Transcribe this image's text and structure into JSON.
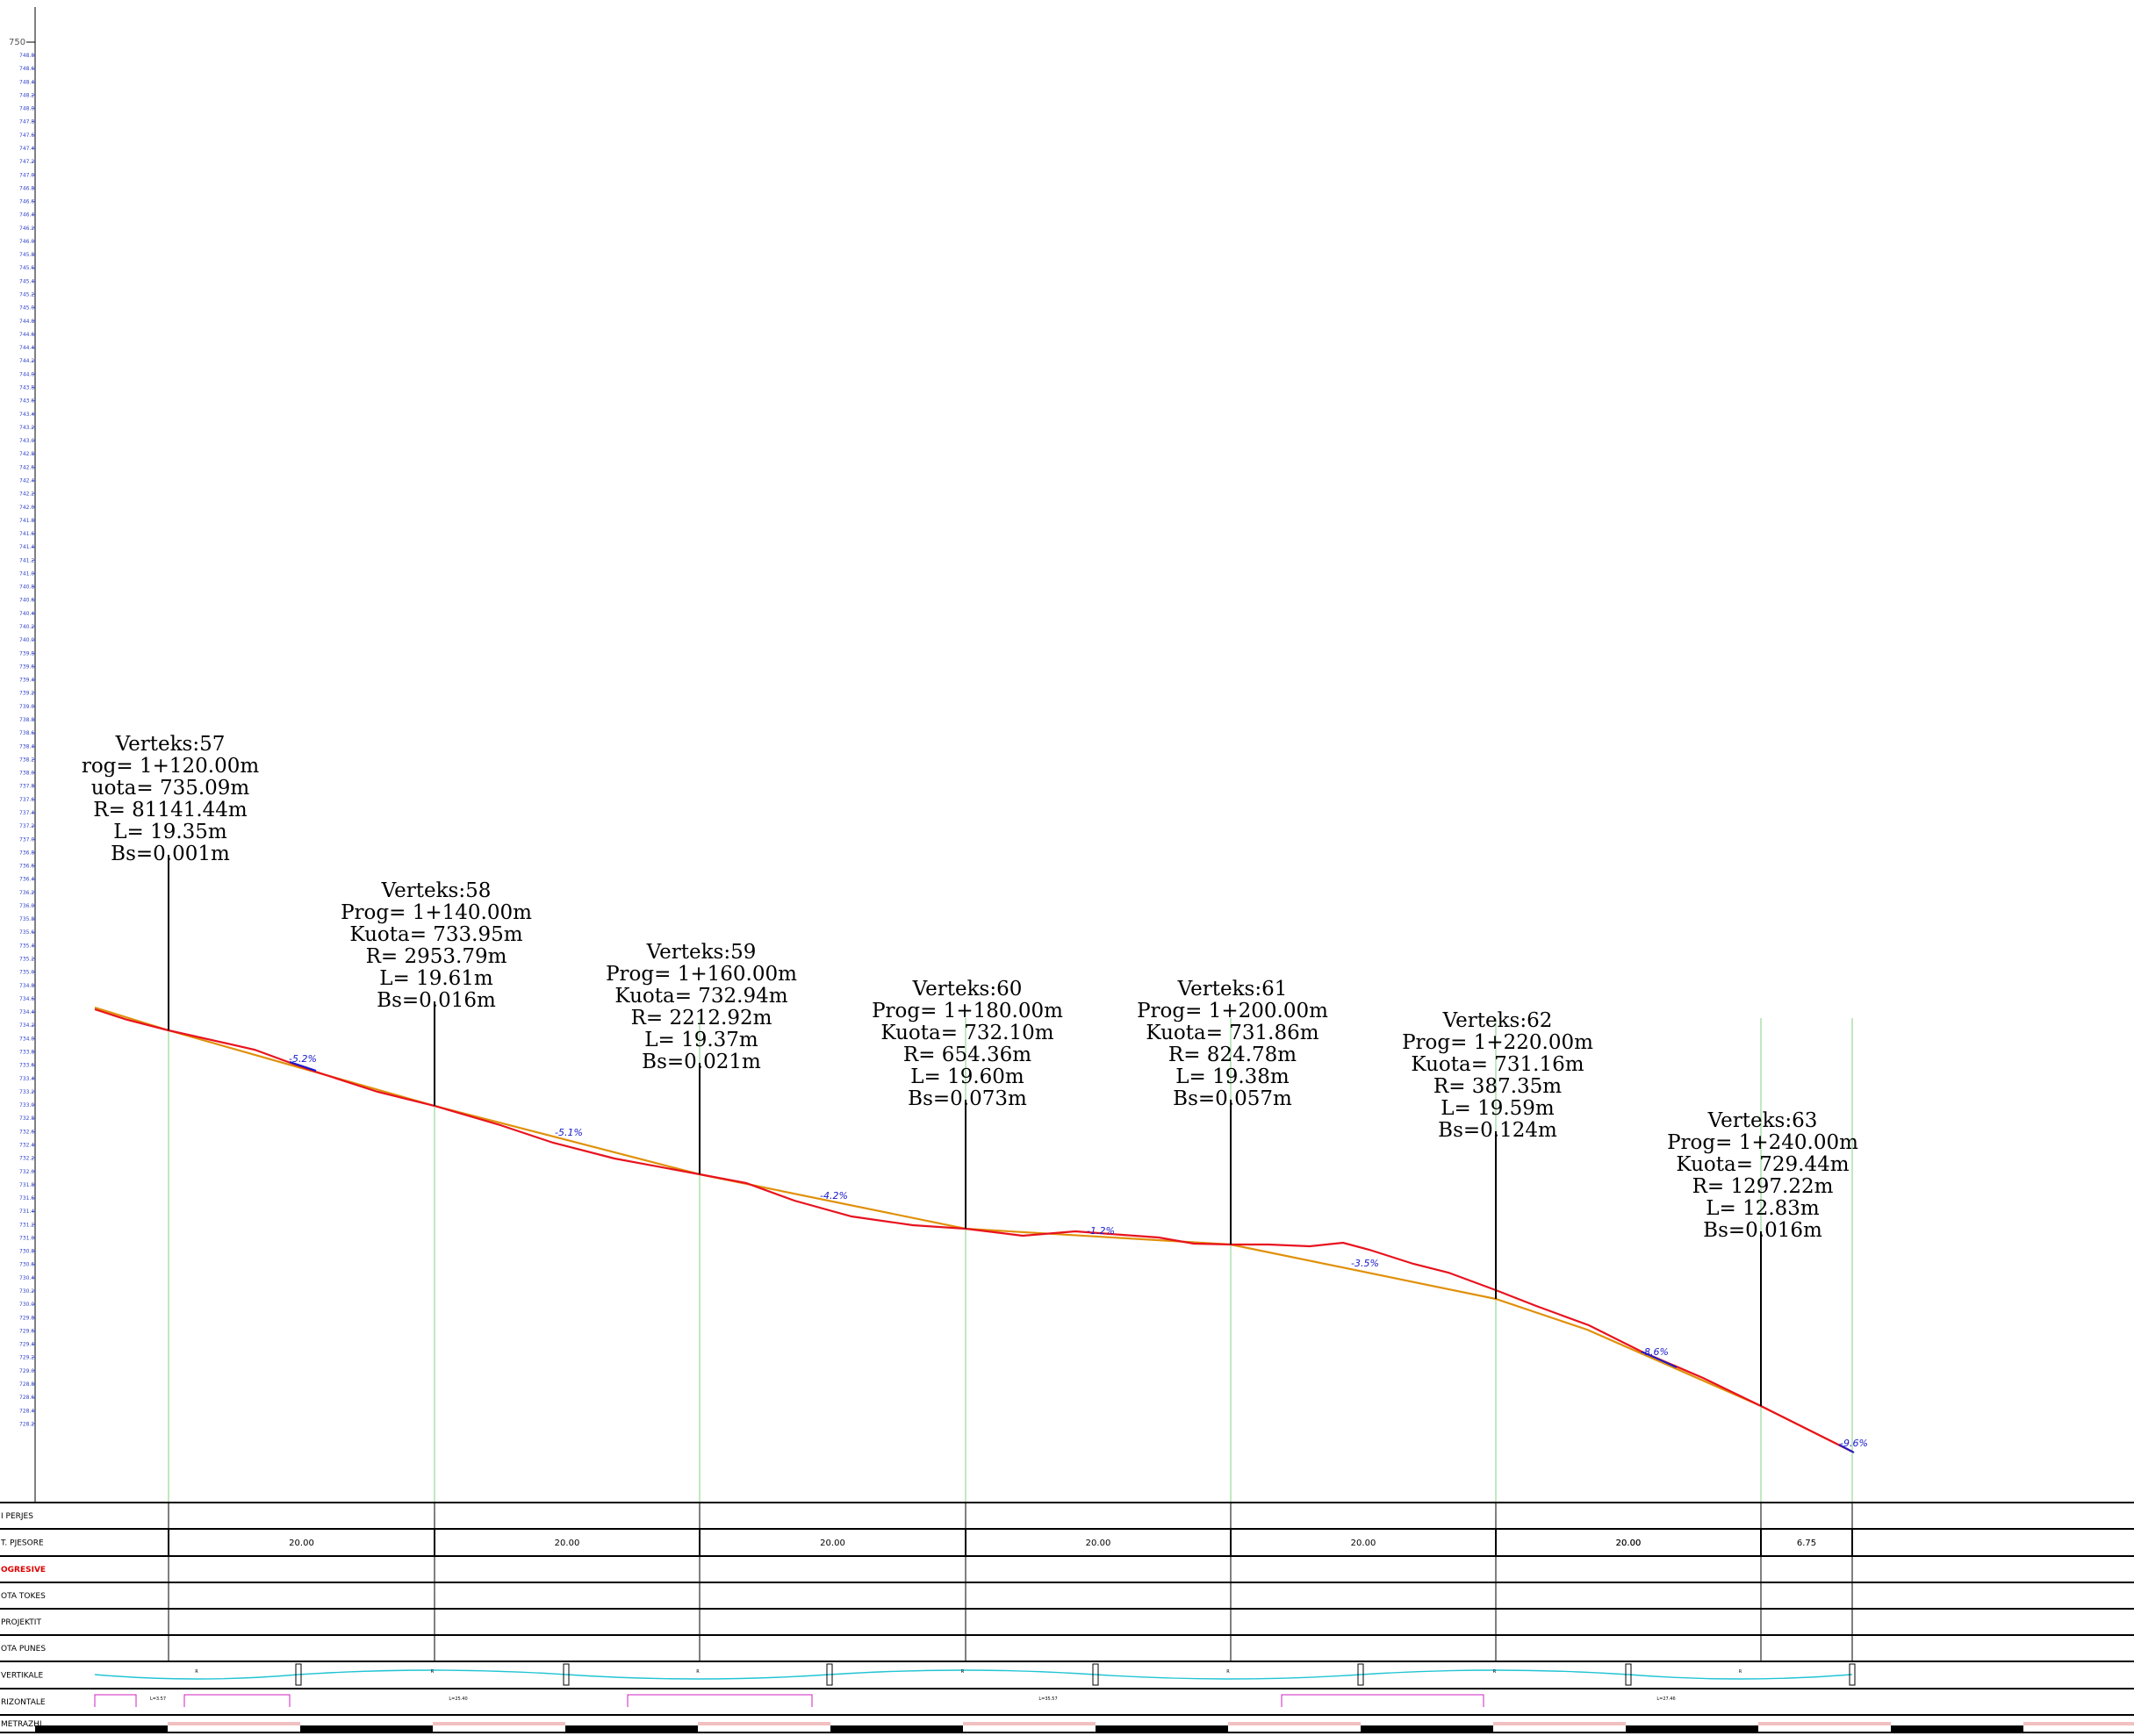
{
  "y_axis": {
    "top_label": "750",
    "ticks": [
      "748.8",
      "748.6",
      "748.4",
      "748.2",
      "748.0",
      "747.8",
      "747.6",
      "747.4",
      "747.2",
      "747.0",
      "746.8",
      "746.6",
      "746.4",
      "746.2",
      "746.0",
      "745.8",
      "745.6",
      "745.4",
      "745.2",
      "745.0",
      "744.8",
      "744.6",
      "744.4",
      "744.2",
      "744.0",
      "743.8",
      "743.6",
      "743.4",
      "743.2",
      "743.0",
      "742.8",
      "742.6",
      "742.4",
      "742.2",
      "742.0",
      "741.8",
      "741.6",
      "741.4",
      "741.2",
      "741.0",
      "740.8",
      "740.6",
      "740.4",
      "740.2",
      "740.0",
      "739.8",
      "739.6",
      "739.4",
      "739.2",
      "739.0",
      "738.8",
      "738.6",
      "738.4",
      "738.2",
      "738.0",
      "737.8",
      "737.6",
      "737.4",
      "737.2",
      "737.0",
      "736.8",
      "736.6",
      "736.4",
      "736.2",
      "736.0",
      "735.8",
      "735.6",
      "735.4",
      "735.2",
      "735.0",
      "734.8",
      "734.6",
      "734.4",
      "734.2",
      "734.0",
      "733.8",
      "733.6",
      "733.4",
      "733.2",
      "733.0",
      "732.8",
      "732.6",
      "732.4",
      "732.2",
      "732.0",
      "731.8",
      "731.6",
      "731.4",
      "731.2",
      "731.0",
      "730.8",
      "730.6",
      "730.4",
      "730.2",
      "730.0",
      "729.8",
      "729.6",
      "729.4",
      "729.2",
      "729.0",
      "728.8",
      "728.6",
      "728.4",
      "728.2"
    ]
  },
  "vertices": [
    {
      "name": "Verteks:57",
      "prog": "rog=  1+120.00m",
      "kuota": "uota=  735.09m",
      "r": "R=  81141.44m",
      "l": "L=  19.35m",
      "bs": "Bs=0.001m"
    },
    {
      "name": "Verteks:58",
      "prog": "Prog=  1+140.00m",
      "kuota": "Kuota=  733.95m",
      "r": "R=  2953.79m",
      "l": "L=  19.61m",
      "bs": "Bs=0.016m"
    },
    {
      "name": "Verteks:59",
      "prog": "Prog=  1+160.00m",
      "kuota": "Kuota=  732.94m",
      "r": "R=  2212.92m",
      "l": "L=  19.37m",
      "bs": "Bs=0.021m"
    },
    {
      "name": "Verteks:60",
      "prog": "Prog=  1+180.00m",
      "kuota": "Kuota=  732.10m",
      "r": "R=  654.36m",
      "l": "L=  19.60m",
      "bs": "Bs=0.073m"
    },
    {
      "name": "Verteks:61",
      "prog": "Prog=  1+200.00m",
      "kuota": "Kuota=  731.86m",
      "r": "R=  824.78m",
      "l": "L=  19.38m",
      "bs": "Bs=0.057m"
    },
    {
      "name": "Verteks:62",
      "prog": "Prog=  1+220.00m",
      "kuota": "Kuota=  731.16m",
      "r": "R=  387.35m",
      "l": "L=  19.59m",
      "bs": "Bs=0.124m"
    },
    {
      "name": "Verteks:63",
      "prog": "Prog=  1+240.00m",
      "kuota": "Kuota=  729.44m",
      "r": "R=  1297.22m",
      "l": "L=  12.83m",
      "bs": "Bs=0.016m"
    }
  ],
  "slopes": [
    "-5.2%",
    "-5.1%",
    "-4.2%",
    "-1.2%",
    "-3.5%",
    "-8.6%",
    "-9.6%"
  ],
  "colors": {
    "terrain": "#e8121e",
    "grade": "#e0900a",
    "vertical_curve": "#22c4d4",
    "horizontal": "#d020c0",
    "station_line": "#80d080",
    "slope_text": "#1a1acc"
  },
  "table": {
    "rows": [
      {
        "label": "I PERJES",
        "color": "black"
      },
      {
        "label": "T. PJESORE",
        "color": "black"
      },
      {
        "label": "OGRESIVE",
        "color": "red"
      },
      {
        "label": "OTA TOKES",
        "color": "black"
      },
      {
        "label": "PROJEKTIT",
        "color": "black"
      },
      {
        "label": "OTA PUNES",
        "color": "black"
      },
      {
        "label": "VERTIKALE",
        "color": "black"
      },
      {
        "label": "RIZONTALE",
        "color": "black"
      },
      {
        "label": "METRAZHI",
        "color": "black"
      }
    ],
    "distances": [
      "20.00",
      "20.00",
      "20.00",
      "20.00",
      "20.00",
      "20.00",
      "20.00",
      "6.75"
    ],
    "horizontal_lengths": [
      "L=3.57",
      "L=25.40",
      "L=35.57",
      "L=27.46"
    ]
  }
}
